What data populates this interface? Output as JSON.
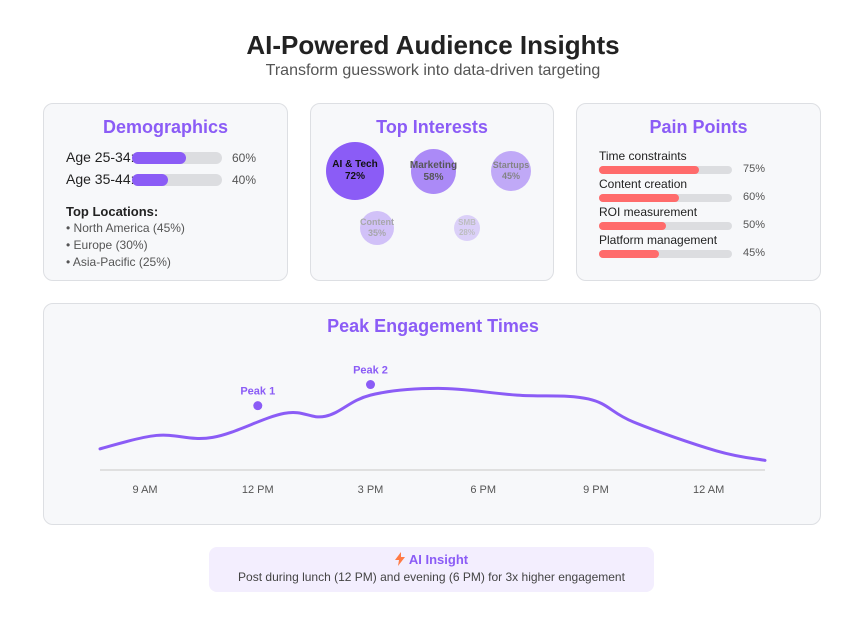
{
  "header": {
    "title": "AI-Powered Audience Insights",
    "subtitle": "Transform guesswork into data-driven targeting"
  },
  "demographics": {
    "title": "Demographics",
    "ages": [
      {
        "label": "Age 25-34:",
        "percent": 60,
        "percent_label": "60%"
      },
      {
        "label": "Age 35-44:",
        "percent": 40,
        "percent_label": "40%"
      }
    ],
    "locations_title": "Top Locations:",
    "locations": [
      "• North America (45%)",
      "• Europe (30%)",
      "• Asia-Pacific (25%)"
    ]
  },
  "interests": {
    "title": "Top Interests",
    "items": [
      {
        "name": "AI & Tech",
        "percent": 72,
        "percent_label": "72%"
      },
      {
        "name": "Marketing",
        "percent": 58,
        "percent_label": "58%"
      },
      {
        "name": "Startups",
        "percent": 45,
        "percent_label": "45%"
      },
      {
        "name": "Content",
        "percent": 35,
        "percent_label": "35%"
      },
      {
        "name": "SMB",
        "percent": 28,
        "percent_label": "28%"
      }
    ]
  },
  "pain_points": {
    "title": "Pain Points",
    "items": [
      {
        "label": "Time constraints",
        "percent": 75,
        "percent_label": "75%"
      },
      {
        "label": "Content creation",
        "percent": 60,
        "percent_label": "60%"
      },
      {
        "label": "ROI measurement",
        "percent": 50,
        "percent_label": "50%"
      },
      {
        "label": "Platform management",
        "percent": 45,
        "percent_label": "45%"
      }
    ]
  },
  "chart_data": {
    "type": "line",
    "title": "Peak Engagement Times",
    "xlabel": "",
    "ylabel": "",
    "tick_labels": [
      "9 AM",
      "12 PM",
      "3 PM",
      "6 PM",
      "9 PM",
      "12 AM"
    ],
    "tick_hours": [
      9,
      12,
      15,
      18,
      21,
      24
    ],
    "xlim": [
      7.8,
      25.5
    ],
    "ylim": [
      0,
      100
    ],
    "grid": false,
    "series": [
      {
        "points": [
          {
            "x": 7.8,
            "y": 22
          },
          {
            "x": 9.3,
            "y": 36
          },
          {
            "x": 10.8,
            "y": 34
          },
          {
            "x": 12.7,
            "y": 59
          },
          {
            "x": 13.8,
            "y": 56
          },
          {
            "x": 15.0,
            "y": 78
          },
          {
            "x": 16.8,
            "y": 85
          },
          {
            "x": 18.9,
            "y": 78
          },
          {
            "x": 20.8,
            "y": 74
          },
          {
            "x": 22.0,
            "y": 50
          },
          {
            "x": 24.2,
            "y": 20
          },
          {
            "x": 25.5,
            "y": 10
          }
        ]
      }
    ],
    "annotations": [
      {
        "label": "Peak 1",
        "x": 12.0,
        "y": 67
      },
      {
        "label": "Peak 2",
        "x": 15.0,
        "y": 89
      }
    ],
    "line_color": "#8b5cf6"
  },
  "insight": {
    "icon": "lightning-bolt-icon",
    "title": "AI Insight",
    "text": "Post during lunch (12 PM) and evening (6 PM) for 3x higher engagement"
  },
  "colors": {
    "accent": "#8b5cf6",
    "pain_bar": "#ff6b6b"
  }
}
